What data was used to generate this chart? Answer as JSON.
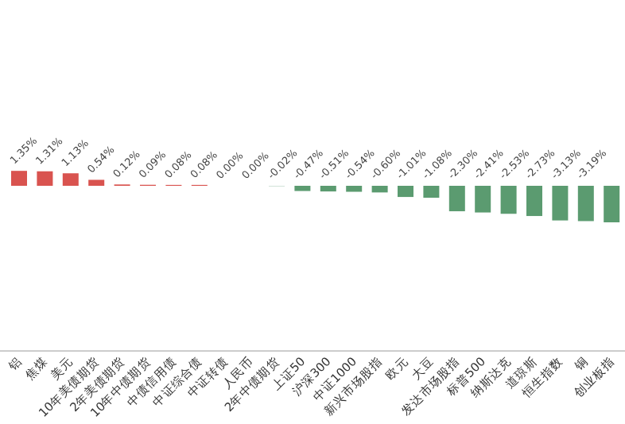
{
  "chart_data": {
    "type": "bar",
    "categories": [
      "铝",
      "焦煤",
      "美元",
      "10年美债期货",
      "2年美债期货",
      "10年中债期货",
      "中债信用债",
      "中证综合债",
      "中证转债",
      "人民币",
      "2年中债期货",
      "上证50",
      "沪深300",
      "中证1000",
      "新兴市场股指",
      "欧元",
      "大豆",
      "发达市场股指",
      "标普500",
      "纳斯达克",
      "道琼斯",
      "恒生指数",
      "铜",
      "创业板指"
    ],
    "values": [
      1.35,
      1.31,
      1.13,
      0.54,
      0.12,
      0.09,
      0.08,
      0.08,
      0.0,
      0.0,
      -0.02,
      -0.47,
      -0.51,
      -0.54,
      -0.6,
      -1.01,
      -1.08,
      -2.3,
      -2.41,
      -2.53,
      -2.73,
      -3.13,
      -3.19,
      -3.3
    ],
    "value_labels": [
      "1.35%",
      "1.31%",
      "1.13%",
      "0.54%",
      "0.12%",
      "0.09%",
      "0.08%",
      "0.08%",
      "0.00%",
      "0.00%",
      "-0.02%",
      "-0.47%",
      "-0.51%",
      "-0.54%",
      "-0.60%",
      "-1.01%",
      "-1.08%",
      "-2.30%",
      "-2.41%",
      "-2.53%",
      "-2.73%",
      "-3.13%",
      "-3.19%",
      null
    ],
    "colors": [
      "#d9534f",
      "#d9534f",
      "#d9534f",
      "#d9534f",
      "#d9534f",
      "#d9534f",
      "#d9534f",
      "#d9534f",
      "#d9534f",
      "#d9534f",
      "#5b9b70",
      "#5b9b70",
      "#5b9b70",
      "#5b9b70",
      "#5b9b70",
      "#5b9b70",
      "#5b9b70",
      "#5b9b70",
      "#5b9b70",
      "#5b9b70",
      "#5b9b70",
      "#5b9b70",
      "#5b9b70",
      "#5b9b70"
    ]
  }
}
